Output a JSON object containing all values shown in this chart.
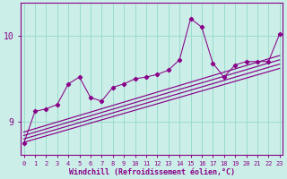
{
  "xlabel": "Windchill (Refroidissement éolien,°C)",
  "x_ticks": [
    0,
    1,
    2,
    3,
    4,
    5,
    6,
    7,
    8,
    9,
    10,
    11,
    12,
    13,
    14,
    15,
    16,
    17,
    18,
    19,
    20,
    21,
    22,
    23
  ],
  "y_ticks": [
    9,
    10
  ],
  "ylim": [
    8.62,
    10.38
  ],
  "xlim": [
    -0.3,
    23.3
  ],
  "bg_color": "#cceee8",
  "grid_color": "#99ddcc",
  "line_color": "#880088",
  "data_x": [
    0,
    1,
    2,
    3,
    4,
    5,
    6,
    7,
    8,
    9,
    10,
    11,
    12,
    13,
    14,
    15,
    16,
    17,
    18,
    19,
    20,
    21,
    22,
    23
  ],
  "data_y": [
    8.75,
    9.12,
    9.15,
    9.2,
    9.44,
    9.52,
    9.28,
    9.24,
    9.4,
    9.44,
    9.5,
    9.52,
    9.55,
    9.6,
    9.72,
    10.2,
    10.1,
    9.68,
    9.52,
    9.66,
    9.7,
    9.7,
    9.7,
    10.02
  ],
  "trend_starts": [
    8.76,
    8.8,
    8.84,
    8.88
  ],
  "trend_ends": [
    9.62,
    9.67,
    9.72,
    9.77
  ]
}
